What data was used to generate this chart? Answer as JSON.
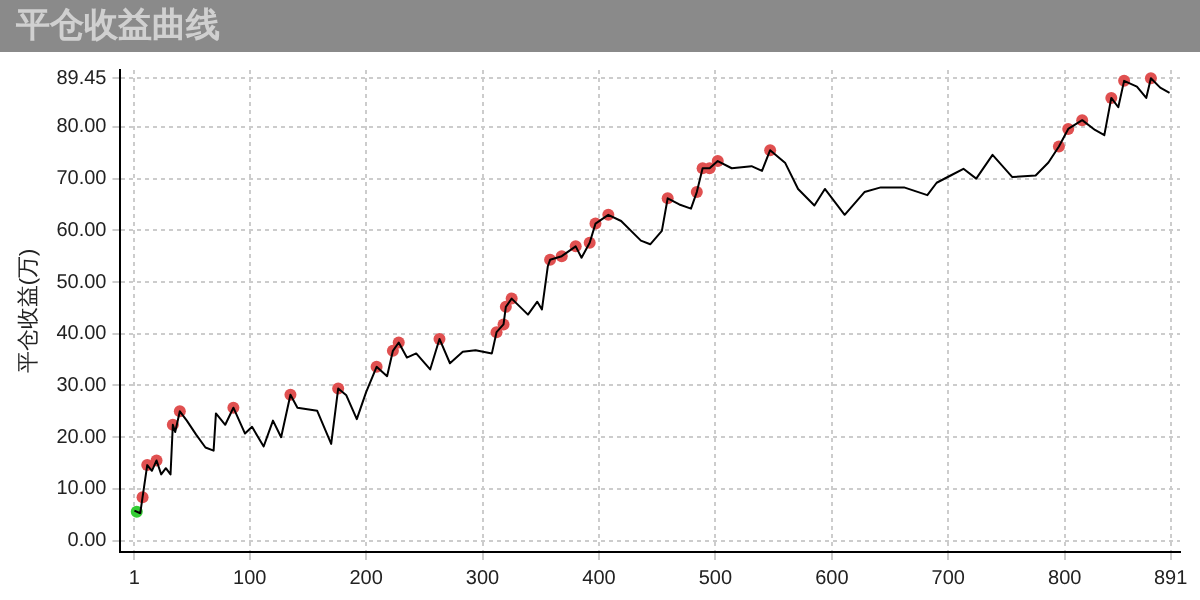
{
  "chart_data": {
    "type": "line",
    "title": "平仓收益曲线",
    "ylabel": "平仓收益(万)",
    "xlim": [
      -11,
      899
    ],
    "xticks": [
      1,
      100,
      200,
      300,
      400,
      500,
      600,
      700,
      800,
      891
    ],
    "ylim": [
      -2.2,
      91
    ],
    "yticks": [
      {
        "value": 0,
        "label": "0.00"
      },
      {
        "value": 10,
        "label": "10.00"
      },
      {
        "value": 20,
        "label": "20.00"
      },
      {
        "value": 30,
        "label": "30.00"
      },
      {
        "value": 40,
        "label": "40.00"
      },
      {
        "value": 50,
        "label": "50.00"
      },
      {
        "value": 60,
        "label": "60.00"
      },
      {
        "value": 70,
        "label": "70.00"
      },
      {
        "value": 80,
        "label": "80.00"
      },
      89.45
    ],
    "grid": true,
    "legend": false,
    "series": [
      {
        "type": "line",
        "color": "#000000",
        "line_style": "solid",
        "x": [
          1,
          6,
          8,
          12,
          16,
          20,
          24,
          28,
          32,
          34,
          36,
          40,
          46,
          54,
          62,
          69,
          71,
          79,
          86,
          96,
          102,
          112,
          120,
          127,
          135,
          141,
          158,
          170,
          176,
          183,
          192,
          200,
          209,
          218,
          223,
          228,
          235,
          243,
          255,
          263,
          272,
          283,
          294,
          308,
          312,
          318,
          320,
          325,
          339,
          347,
          351,
          356,
          358,
          368,
          380,
          385,
          392,
          397,
          408,
          419,
          436,
          444,
          454,
          459,
          469,
          479,
          484,
          489,
          495,
          502,
          514,
          531,
          540,
          547,
          560,
          571,
          585,
          594,
          611,
          628,
          642,
          662,
          682,
          690,
          702,
          713,
          724,
          738,
          755,
          775,
          786,
          795,
          803,
          815,
          826,
          834,
          840,
          846,
          851,
          862,
          870,
          874,
          882,
          890
        ],
        "values": [
          5.8,
          5.3,
          8.4,
          14.6,
          13.5,
          15.5,
          12.8,
          14.0,
          12.8,
          22.4,
          21,
          25,
          23.2,
          20.5,
          18,
          17.4,
          24.6,
          22.4,
          25.7,
          20.7,
          22,
          18.2,
          23.2,
          20,
          28.2,
          25.7,
          25.1,
          18.7,
          29.4,
          28.1,
          23.5,
          28.7,
          33.6,
          31.8,
          36.7,
          38.3,
          35.4,
          36.2,
          33.1,
          39,
          34.3,
          36.5,
          36.8,
          36.2,
          40.3,
          41.8,
          45.2,
          46.8,
          43.7,
          46.2,
          44.7,
          53,
          54.3,
          55,
          56.9,
          54.7,
          57.6,
          61.3,
          63,
          61.8,
          58,
          57.3,
          59.9,
          66.2,
          65,
          64.2,
          67.4,
          72,
          72,
          73.4,
          72,
          72.4,
          71.5,
          75.5,
          73,
          68,
          64.8,
          68,
          63,
          67.4,
          68.3,
          68.3,
          66.8,
          69.2,
          70.6,
          71.9,
          70,
          74.6,
          70.3,
          70.6,
          73.1,
          76.2,
          79.6,
          81.3,
          79.4,
          78.4,
          85.6,
          83.8,
          88.9,
          87.8,
          85.6,
          89.4,
          87.6,
          86.6
        ]
      },
      {
        "type": "scatter",
        "color": "#e05050",
        "marker": "circle",
        "x": [
          8,
          12,
          20,
          34,
          40,
          86,
          135,
          176,
          209,
          223,
          228,
          263,
          312,
          318,
          320,
          325,
          358,
          368,
          380,
          392,
          397,
          408,
          459,
          484,
          489,
          495,
          502,
          547,
          795,
          803,
          815,
          840,
          851,
          874
        ],
        "values": [
          8.4,
          14.6,
          15.5,
          22.4,
          25,
          25.7,
          28.2,
          29.4,
          33.6,
          36.7,
          38.3,
          39,
          40.3,
          41.8,
          45.2,
          46.8,
          54.3,
          55,
          56.9,
          57.6,
          61.3,
          63,
          66.2,
          67.4,
          72,
          72,
          73.4,
          75.5,
          76.2,
          79.6,
          81.3,
          85.6,
          88.9,
          89.4
        ]
      },
      {
        "type": "scatter",
        "color": "#33cc33",
        "marker": "circle",
        "x": [
          3
        ],
        "values": [
          5.6
        ]
      }
    ]
  }
}
